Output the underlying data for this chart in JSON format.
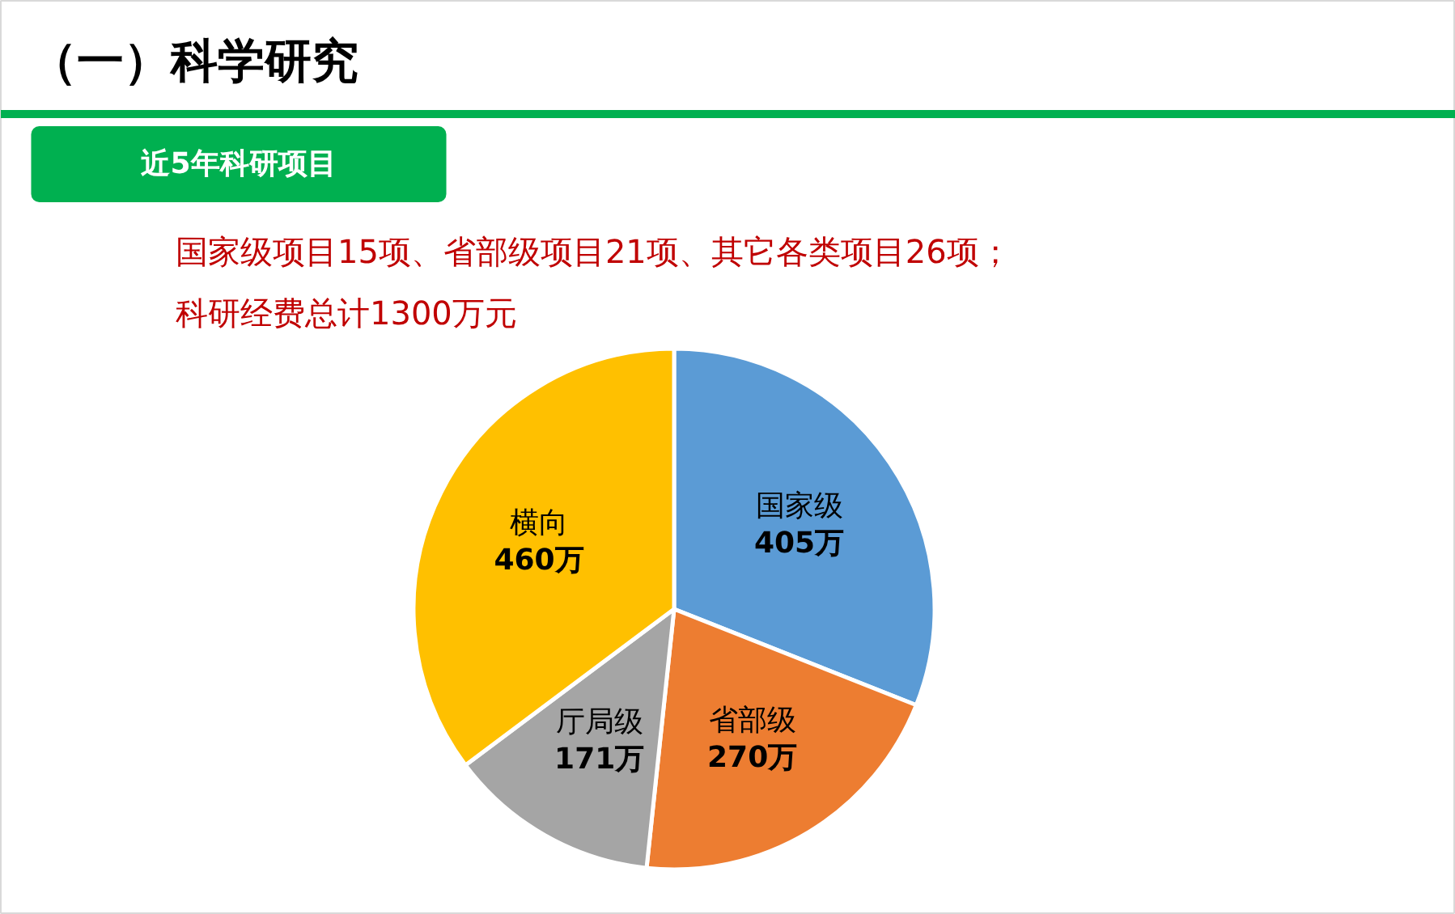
{
  "chart_data": {
    "type": "pie",
    "title": "（一）科学研究",
    "subtitle": "近5年科研项目",
    "annotations": [
      "国家级项目15项、省部级项目21项、其它各类项目26项；",
      "科研经费总计1300万元"
    ],
    "categories": [
      "国家级",
      "省部级",
      "厅局级",
      "横向"
    ],
    "values": [
      405,
      270,
      171,
      460
    ],
    "colors": [
      "#5b9bd5",
      "#ed7d31",
      "#a5a5a5",
      "#ffc000"
    ],
    "value_labels": [
      "405万",
      "270万",
      "171万",
      "460万"
    ]
  }
}
